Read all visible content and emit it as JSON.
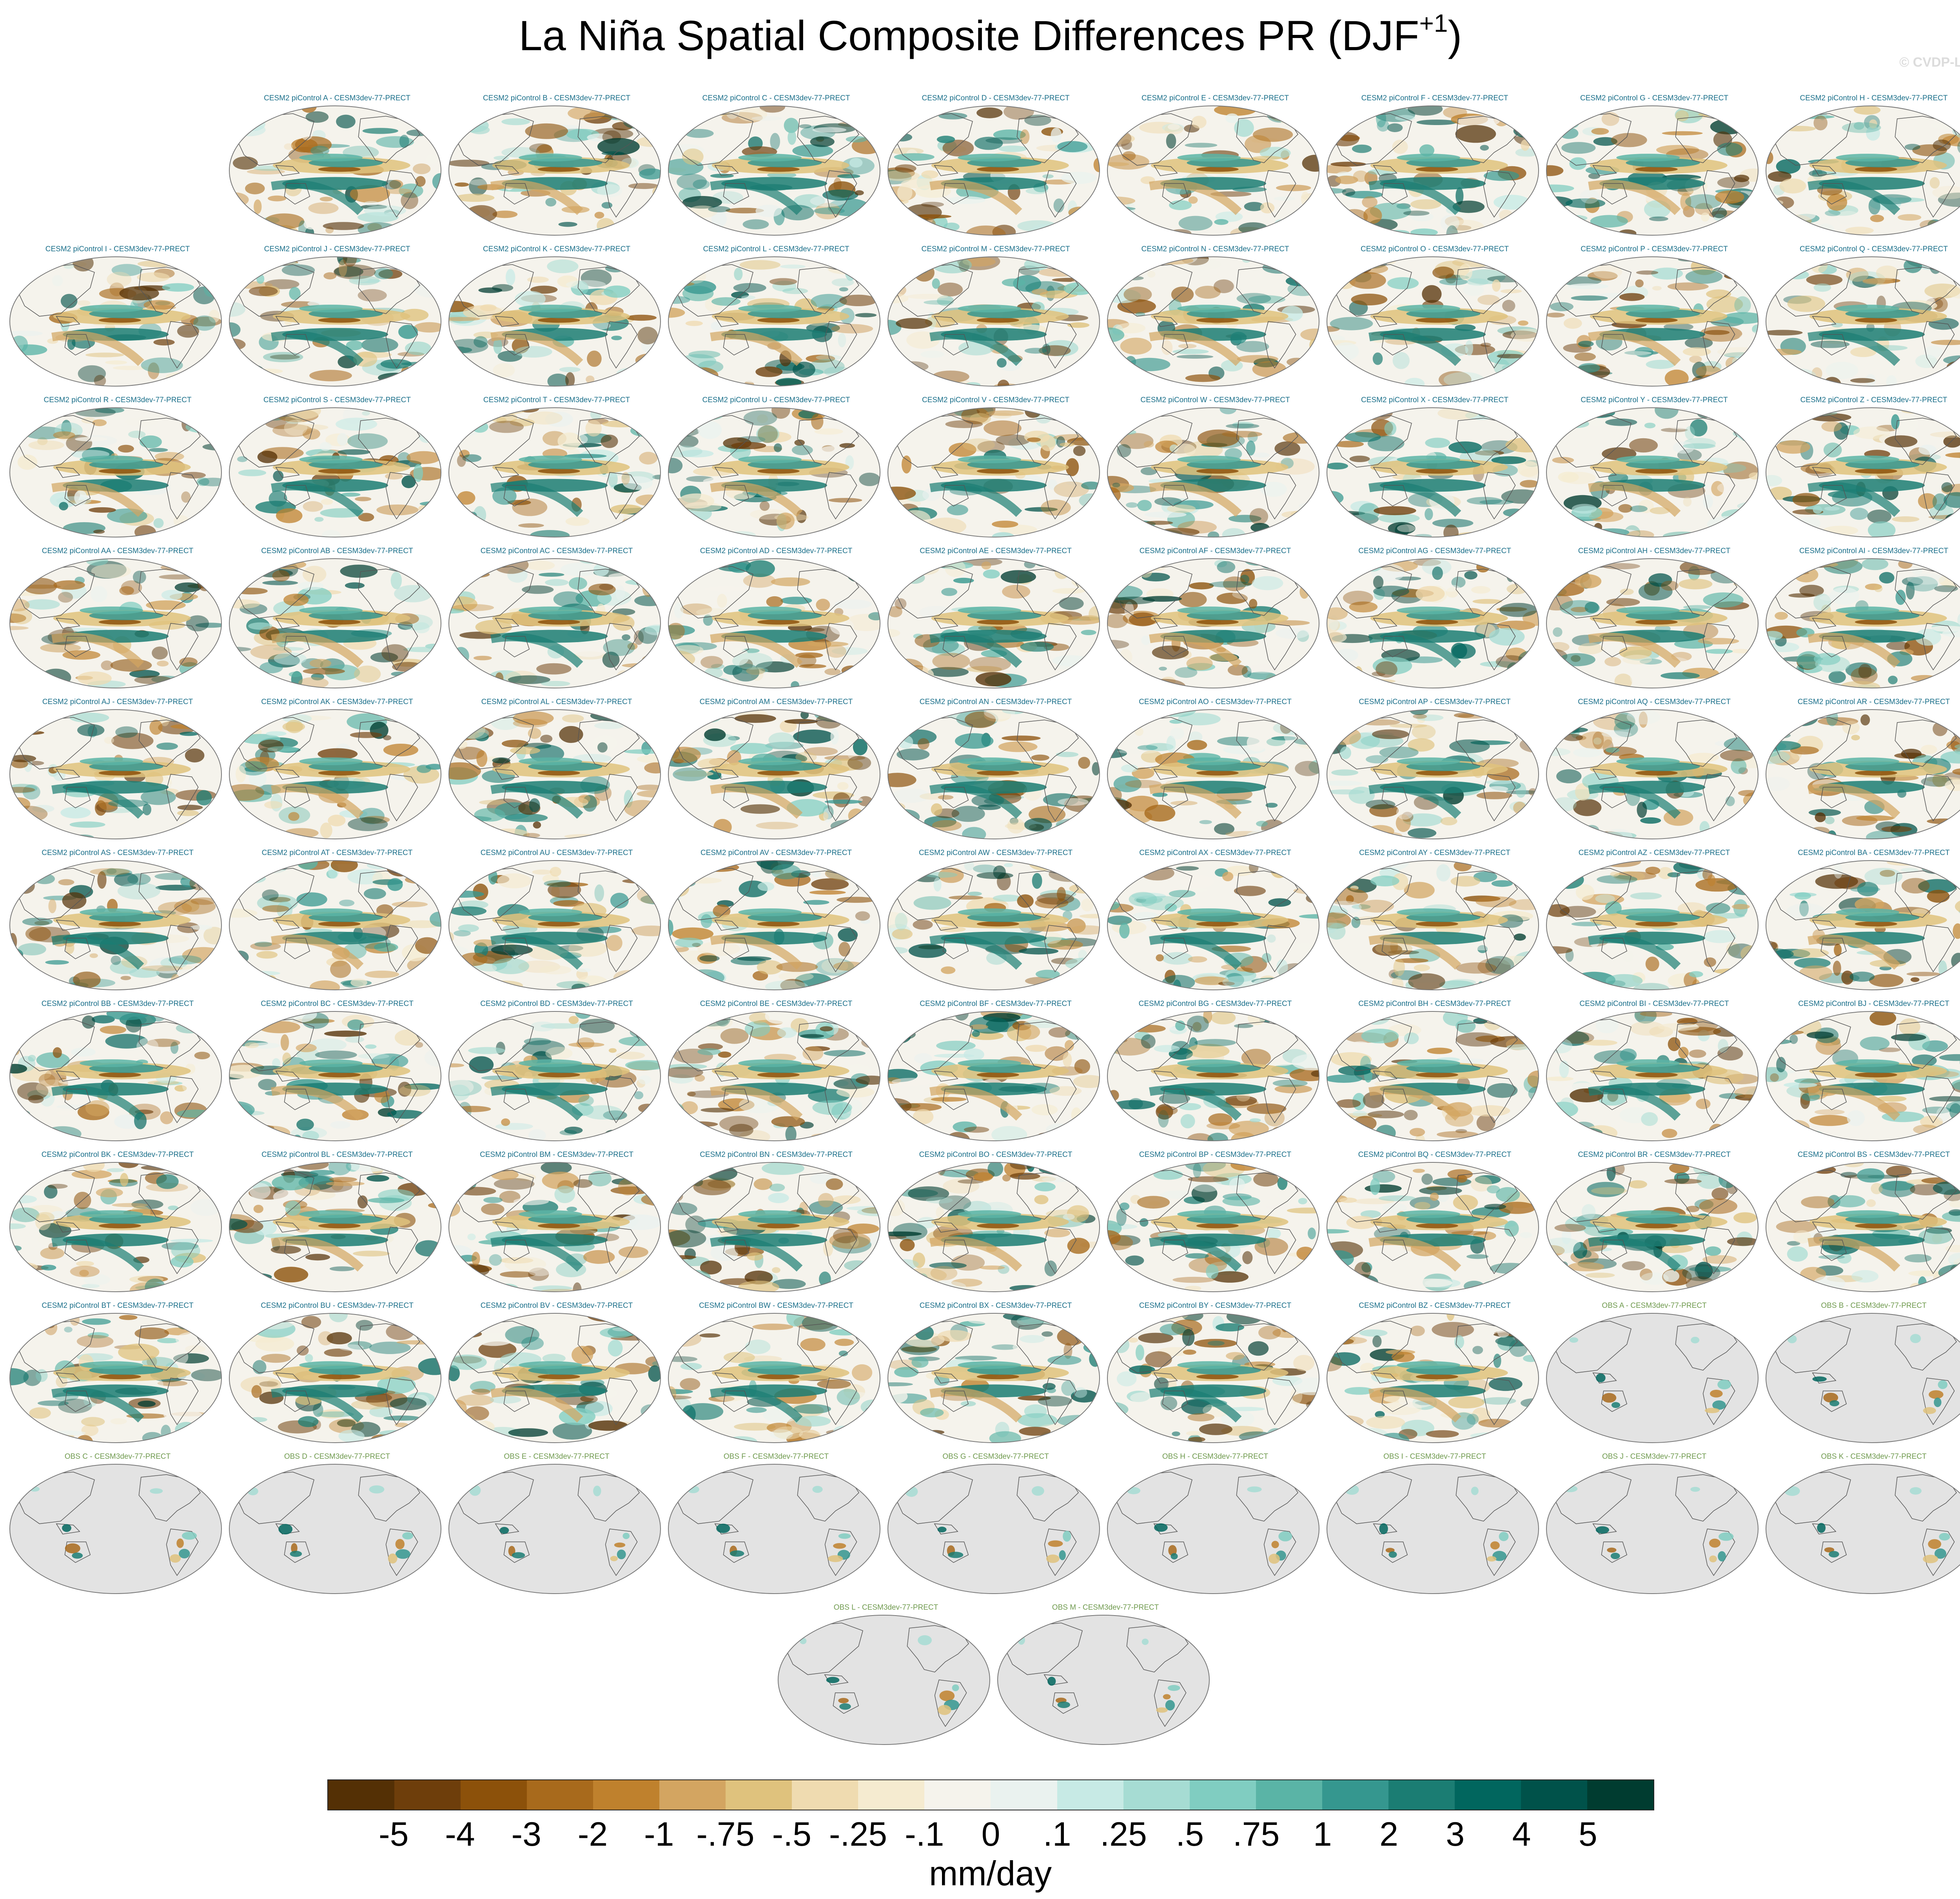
{
  "title": {
    "main": "La Niña Spatial Composite Differences PR (DJF",
    "sup": "+1",
    "close": ")"
  },
  "watermark": "© CVDP-LE",
  "colors": {
    "model_title": "#1a6f8a",
    "obs_title": "#6f9a4e",
    "land_obs": "#e3e3e3",
    "coast": "#555555"
  },
  "chart_data": {
    "type": "heatmap",
    "units": "mm/day",
    "colorbar": {
      "labels": [
        "-5",
        "-4",
        "-3",
        "-2",
        "-1",
        "-.75",
        "-.5",
        "-.25",
        "-.1",
        "0",
        ".1",
        ".25",
        ".5",
        ".75",
        "1",
        "2",
        "3",
        "4",
        "5"
      ],
      "colors": [
        "#543005",
        "#6e3e0b",
        "#8c510a",
        "#a86a1c",
        "#bf812d",
        "#d3a561",
        "#dfc27d",
        "#efdbb0",
        "#f5ebd0",
        "#f5f3ec",
        "#eaf2ef",
        "#c7eae5",
        "#a6dcd3",
        "#80cdc1",
        "#5ab4a6",
        "#35978f",
        "#1b7d73",
        "#01665e",
        "#00524a",
        "#003c30"
      ]
    },
    "panels": [
      {
        "title": "CESM2 piControl A - CESM3dev-77-PRECT",
        "kind": "model"
      },
      {
        "title": "CESM2 piControl B - CESM3dev-77-PRECT",
        "kind": "model"
      },
      {
        "title": "CESM2 piControl C - CESM3dev-77-PRECT",
        "kind": "model"
      },
      {
        "title": "CESM2 piControl D - CESM3dev-77-PRECT",
        "kind": "model"
      },
      {
        "title": "CESM2 piControl E - CESM3dev-77-PRECT",
        "kind": "model"
      },
      {
        "title": "CESM2 piControl F - CESM3dev-77-PRECT",
        "kind": "model"
      },
      {
        "title": "CESM2 piControl G - CESM3dev-77-PRECT",
        "kind": "model"
      },
      {
        "title": "CESM2 piControl H - CESM3dev-77-PRECT",
        "kind": "model"
      },
      {
        "title": "CESM2 piControl I - CESM3dev-77-PRECT",
        "kind": "model"
      },
      {
        "title": "CESM2 piControl J - CESM3dev-77-PRECT",
        "kind": "model"
      },
      {
        "title": "CESM2 piControl K - CESM3dev-77-PRECT",
        "kind": "model"
      },
      {
        "title": "CESM2 piControl L - CESM3dev-77-PRECT",
        "kind": "model"
      },
      {
        "title": "CESM2 piControl M - CESM3dev-77-PRECT",
        "kind": "model"
      },
      {
        "title": "CESM2 piControl N - CESM3dev-77-PRECT",
        "kind": "model"
      },
      {
        "title": "CESM2 piControl O - CESM3dev-77-PRECT",
        "kind": "model"
      },
      {
        "title": "CESM2 piControl P - CESM3dev-77-PRECT",
        "kind": "model"
      },
      {
        "title": "CESM2 piControl Q - CESM3dev-77-PRECT",
        "kind": "model"
      },
      {
        "title": "CESM2 piControl R - CESM3dev-77-PRECT",
        "kind": "model"
      },
      {
        "title": "CESM2 piControl S - CESM3dev-77-PRECT",
        "kind": "model"
      },
      {
        "title": "CESM2 piControl T - CESM3dev-77-PRECT",
        "kind": "model"
      },
      {
        "title": "CESM2 piControl U - CESM3dev-77-PRECT",
        "kind": "model"
      },
      {
        "title": "CESM2 piControl V - CESM3dev-77-PRECT",
        "kind": "model"
      },
      {
        "title": "CESM2 piControl W - CESM3dev-77-PRECT",
        "kind": "model"
      },
      {
        "title": "CESM2 piControl X - CESM3dev-77-PRECT",
        "kind": "model"
      },
      {
        "title": "CESM2 piControl Y - CESM3dev-77-PRECT",
        "kind": "model"
      },
      {
        "title": "CESM2 piControl Z - CESM3dev-77-PRECT",
        "kind": "model"
      },
      {
        "title": "CESM2 piControl AA - CESM3dev-77-PRECT",
        "kind": "model"
      },
      {
        "title": "CESM2 piControl AB - CESM3dev-77-PRECT",
        "kind": "model"
      },
      {
        "title": "CESM2 piControl AC - CESM3dev-77-PRECT",
        "kind": "model"
      },
      {
        "title": "CESM2 piControl AD - CESM3dev-77-PRECT",
        "kind": "model"
      },
      {
        "title": "CESM2 piControl AE - CESM3dev-77-PRECT",
        "kind": "model"
      },
      {
        "title": "CESM2 piControl AF - CESM3dev-77-PRECT",
        "kind": "model"
      },
      {
        "title": "CESM2 piControl AG - CESM3dev-77-PRECT",
        "kind": "model"
      },
      {
        "title": "CESM2 piControl AH - CESM3dev-77-PRECT",
        "kind": "model"
      },
      {
        "title": "CESM2 piControl AI - CESM3dev-77-PRECT",
        "kind": "model"
      },
      {
        "title": "CESM2 piControl AJ - CESM3dev-77-PRECT",
        "kind": "model"
      },
      {
        "title": "CESM2 piControl AK - CESM3dev-77-PRECT",
        "kind": "model"
      },
      {
        "title": "CESM2 piControl AL - CESM3dev-77-PRECT",
        "kind": "model"
      },
      {
        "title": "CESM2 piControl AM - CESM3dev-77-PRECT",
        "kind": "model"
      },
      {
        "title": "CESM2 piControl AN - CESM3dev-77-PRECT",
        "kind": "model"
      },
      {
        "title": "CESM2 piControl AO - CESM3dev-77-PRECT",
        "kind": "model"
      },
      {
        "title": "CESM2 piControl AP - CESM3dev-77-PRECT",
        "kind": "model"
      },
      {
        "title": "CESM2 piControl AQ - CESM3dev-77-PRECT",
        "kind": "model"
      },
      {
        "title": "CESM2 piControl AR - CESM3dev-77-PRECT",
        "kind": "model"
      },
      {
        "title": "CESM2 piControl AS - CESM3dev-77-PRECT",
        "kind": "model"
      },
      {
        "title": "CESM2 piControl AT - CESM3dev-77-PRECT",
        "kind": "model"
      },
      {
        "title": "CESM2 piControl AU - CESM3dev-77-PRECT",
        "kind": "model"
      },
      {
        "title": "CESM2 piControl AV - CESM3dev-77-PRECT",
        "kind": "model"
      },
      {
        "title": "CESM2 piControl AW - CESM3dev-77-PRECT",
        "kind": "model"
      },
      {
        "title": "CESM2 piControl AX - CESM3dev-77-PRECT",
        "kind": "model"
      },
      {
        "title": "CESM2 piControl AY - CESM3dev-77-PRECT",
        "kind": "model"
      },
      {
        "title": "CESM2 piControl AZ - CESM3dev-77-PRECT",
        "kind": "model"
      },
      {
        "title": "CESM2 piControl BA - CESM3dev-77-PRECT",
        "kind": "model"
      },
      {
        "title": "CESM2 piControl BB - CESM3dev-77-PRECT",
        "kind": "model"
      },
      {
        "title": "CESM2 piControl BC - CESM3dev-77-PRECT",
        "kind": "model"
      },
      {
        "title": "CESM2 piControl BD - CESM3dev-77-PRECT",
        "kind": "model"
      },
      {
        "title": "CESM2 piControl BE - CESM3dev-77-PRECT",
        "kind": "model"
      },
      {
        "title": "CESM2 piControl BF - CESM3dev-77-PRECT",
        "kind": "model"
      },
      {
        "title": "CESM2 piControl BG - CESM3dev-77-PRECT",
        "kind": "model"
      },
      {
        "title": "CESM2 piControl BH - CESM3dev-77-PRECT",
        "kind": "model"
      },
      {
        "title": "CESM2 piControl BI - CESM3dev-77-PRECT",
        "kind": "model"
      },
      {
        "title": "CESM2 piControl BJ - CESM3dev-77-PRECT",
        "kind": "model"
      },
      {
        "title": "CESM2 piControl BK - CESM3dev-77-PRECT",
        "kind": "model"
      },
      {
        "title": "CESM2 piControl BL - CESM3dev-77-PRECT",
        "kind": "model"
      },
      {
        "title": "CESM2 piControl BM - CESM3dev-77-PRECT",
        "kind": "model"
      },
      {
        "title": "CESM2 piControl BN - CESM3dev-77-PRECT",
        "kind": "model"
      },
      {
        "title": "CESM2 piControl BO - CESM3dev-77-PRECT",
        "kind": "model"
      },
      {
        "title": "CESM2 piControl BP - CESM3dev-77-PRECT",
        "kind": "model"
      },
      {
        "title": "CESM2 piControl BQ - CESM3dev-77-PRECT",
        "kind": "model"
      },
      {
        "title": "CESM2 piControl BR - CESM3dev-77-PRECT",
        "kind": "model"
      },
      {
        "title": "CESM2 piControl BS - CESM3dev-77-PRECT",
        "kind": "model"
      },
      {
        "title": "CESM2 piControl BT - CESM3dev-77-PRECT",
        "kind": "model"
      },
      {
        "title": "CESM2 piControl BU - CESM3dev-77-PRECT",
        "kind": "model"
      },
      {
        "title": "CESM2 piControl BV - CESM3dev-77-PRECT",
        "kind": "model"
      },
      {
        "title": "CESM2 piControl BW - CESM3dev-77-PRECT",
        "kind": "model"
      },
      {
        "title": "CESM2 piControl BX - CESM3dev-77-PRECT",
        "kind": "model"
      },
      {
        "title": "CESM2 piControl BY - CESM3dev-77-PRECT",
        "kind": "model"
      },
      {
        "title": "CESM2 piControl BZ - CESM3dev-77-PRECT",
        "kind": "model"
      },
      {
        "title": "OBS A - CESM3dev-77-PRECT",
        "kind": "obs"
      },
      {
        "title": "OBS B - CESM3dev-77-PRECT",
        "kind": "obs"
      },
      {
        "title": "OBS C - CESM3dev-77-PRECT",
        "kind": "obs"
      },
      {
        "title": "OBS D - CESM3dev-77-PRECT",
        "kind": "obs"
      },
      {
        "title": "OBS E - CESM3dev-77-PRECT",
        "kind": "obs"
      },
      {
        "title": "OBS F - CESM3dev-77-PRECT",
        "kind": "obs"
      },
      {
        "title": "OBS G - CESM3dev-77-PRECT",
        "kind": "obs"
      },
      {
        "title": "OBS H - CESM3dev-77-PRECT",
        "kind": "obs"
      },
      {
        "title": "OBS I - CESM3dev-77-PRECT",
        "kind": "obs"
      },
      {
        "title": "OBS J - CESM3dev-77-PRECT",
        "kind": "obs"
      },
      {
        "title": "OBS K - CESM3dev-77-PRECT",
        "kind": "obs"
      },
      {
        "title": "OBS L - CESM3dev-77-PRECT",
        "kind": "obs"
      },
      {
        "title": "OBS M - CESM3dev-77-PRECT",
        "kind": "obs"
      }
    ]
  }
}
